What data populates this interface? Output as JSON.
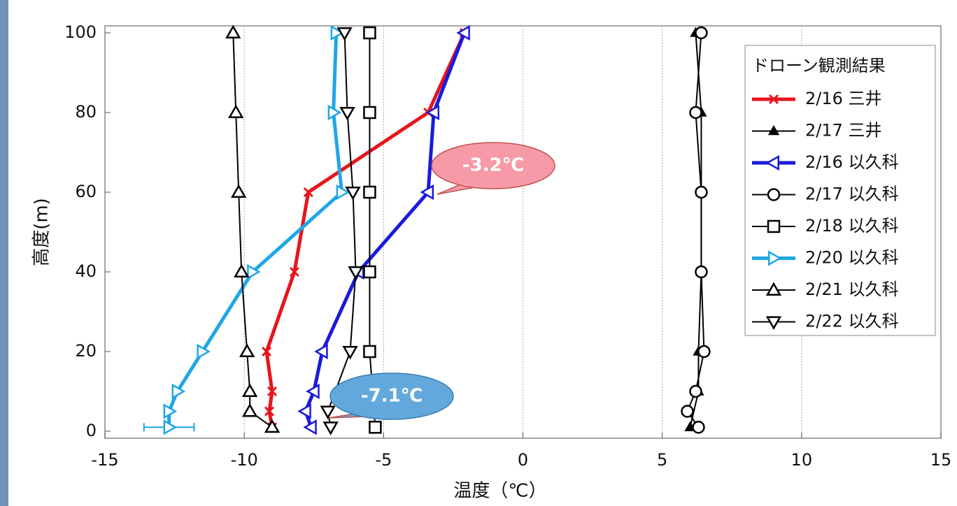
{
  "chart_data": {
    "type": "line",
    "xlabel": "温度（℃）",
    "ylabel": "高度(m)",
    "xlim": [
      -15,
      15
    ],
    "xticks": [
      -15,
      -10,
      -5,
      0,
      5,
      10,
      15
    ],
    "ylim": [
      0,
      100
    ],
    "yticks": [
      0,
      20,
      40,
      60,
      80,
      100
    ],
    "grid": true,
    "legend_title": "ドローン観測結果",
    "legend": "upper right",
    "series": [
      {
        "name": "2/16 三井",
        "color": "#e8141c",
        "marker": "x",
        "x": [
          -9.0,
          -9.1,
          -9.0,
          -9.2,
          -8.2,
          -7.7,
          -3.4,
          -2.1
        ],
        "y": [
          1,
          5,
          10,
          20,
          40,
          60,
          80,
          100
        ]
      },
      {
        "name": "2/17 三井",
        "color": "#000000",
        "marker": "filled-triangle",
        "x": [
          6.0,
          6.3,
          6.3,
          6.4,
          6.4,
          6.4,
          6.2
        ],
        "y": [
          1,
          10,
          20,
          40,
          60,
          80,
          100
        ]
      },
      {
        "name": "2/16 以久科",
        "color": "#1a1adc",
        "marker": "left-triangle",
        "x": [
          -7.6,
          -7.8,
          -7.5,
          -7.2,
          -5.9,
          -3.4,
          -3.2,
          -2.1
        ],
        "y": [
          1,
          5,
          10,
          20,
          40,
          60,
          80,
          100
        ]
      },
      {
        "name": "2/17 以久科",
        "color": "#000000",
        "marker": "circle",
        "x": [
          6.3,
          5.9,
          6.2,
          6.5,
          6.4,
          6.4,
          6.2,
          6.4
        ],
        "y": [
          1,
          5,
          10,
          20,
          40,
          60,
          80,
          100
        ]
      },
      {
        "name": "2/18 以久科",
        "color": "#000000",
        "marker": "square",
        "x": [
          -5.3,
          -5.5,
          -5.5,
          -5.5,
          -5.5,
          -5.5
        ],
        "y": [
          1,
          20,
          40,
          60,
          80,
          100
        ]
      },
      {
        "name": "2/20 以久科",
        "color": "#1ea7e6",
        "marker": "right-triangle",
        "x": [
          -12.7,
          -12.7,
          -12.4,
          -11.5,
          -9.7,
          -6.5,
          -6.8,
          -6.7
        ],
        "y": [
          1,
          5,
          10,
          20,
          40,
          60,
          80,
          100
        ],
        "xerr": [
          0.9,
          null,
          null,
          null,
          null,
          null,
          null,
          null
        ]
      },
      {
        "name": "2/21 以久科",
        "color": "#000000",
        "marker": "triangle",
        "x": [
          -9.0,
          -9.8,
          -9.8,
          -9.9,
          -10.1,
          -10.2,
          -10.3,
          -10.4
        ],
        "y": [
          1,
          5,
          10,
          20,
          40,
          60,
          80,
          100
        ]
      },
      {
        "name": "2/22 以久科",
        "color": "#000000",
        "marker": "down-triangle",
        "x": [
          -6.9,
          -7.0,
          -6.2,
          -6.0,
          -6.1,
          -6.3,
          -6.4
        ],
        "y": [
          1,
          5,
          20,
          40,
          60,
          80,
          100
        ]
      }
    ],
    "annotations": [
      {
        "text": "-3.2℃",
        "color": "#f59aa6"
      },
      {
        "text": "-7.1℃",
        "color": "#62a8dc"
      }
    ]
  }
}
